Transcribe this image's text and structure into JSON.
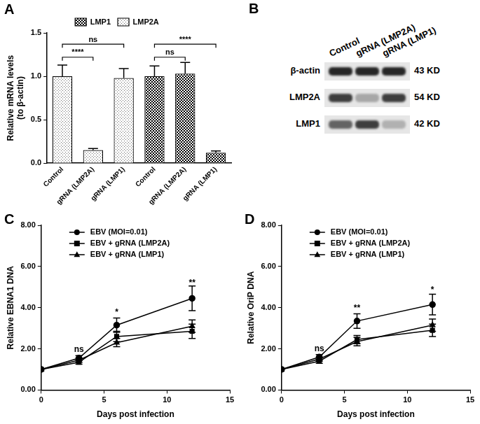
{
  "chart_data": [
    {
      "type": "bar",
      "title": "A",
      "y_label": [
        "Relative mRNA levels",
        "(to β-actin)"
      ],
      "categories": [
        "Control",
        "gRNA (LMP2A)",
        "gRNA (LMP1)",
        "Control",
        "gRNA (LMP2A)",
        "gRNA (LMP1)"
      ],
      "series": [
        {
          "name": "LMP1",
          "color": "#000000",
          "values": [
            null,
            null,
            null,
            1.0,
            1.03,
            0.12
          ],
          "errors": [
            null,
            null,
            null,
            0.12,
            0.13,
            0.02
          ]
        },
        {
          "name": "LMP2A",
          "color": "#000000",
          "values": [
            1.0,
            0.15,
            0.98,
            null,
            null,
            null
          ],
          "errors": [
            0.13,
            0.02,
            0.11,
            null,
            null,
            null
          ]
        }
      ],
      "ylim": [
        0,
        1.5
      ],
      "yticks": [
        {
          "value": 0,
          "label": "0.0"
        },
        {
          "value": 0.5,
          "label": "0.5"
        },
        {
          "value": 1,
          "label": "1.0"
        },
        {
          "value": 1.5,
          "label": "1.5"
        }
      ],
      "grid": false,
      "legend": "top",
      "annotations": [
        {
          "text": "****",
          "from": 0,
          "to": 1,
          "y": 1.22
        },
        {
          "text": "ns",
          "from": 0,
          "to": 2,
          "y": 1.37
        },
        {
          "text": "ns",
          "from": 3,
          "to": 4,
          "y": 1.22
        },
        {
          "text": "****",
          "from": 3,
          "to": 5,
          "y": 1.37
        }
      ]
    },
    {
      "type": "line",
      "title": "C",
      "x_label": "Days post infection",
      "y_label": "Relative EBNA1 DNA",
      "x": [
        0,
        3,
        6,
        12
      ],
      "series": [
        {
          "name": "EBV (MOI=0.01)",
          "color": "#000000",
          "marker": "circle",
          "values": [
            1.0,
            1.55,
            3.15,
            4.45
          ],
          "errors": [
            null,
            0.12,
            0.35,
            0.6
          ]
        },
        {
          "name": "EBV + gRNA (LMP2A)",
          "color": "#000000",
          "marker": "square",
          "values": [
            1.0,
            1.35,
            2.6,
            2.85
          ],
          "errors": [
            null,
            0.1,
            0.25,
            0.35
          ]
        },
        {
          "name": "EBV + gRNA (LMP1)",
          "color": "#000000",
          "marker": "triangle",
          "values": [
            1.0,
            1.45,
            2.3,
            3.1
          ],
          "errors": [
            null,
            0.1,
            0.2,
            0.3
          ]
        }
      ],
      "xlim": [
        0,
        15
      ],
      "xticks": [
        0,
        5,
        10,
        15
      ],
      "ylim": [
        0,
        8
      ],
      "yticks": [
        {
          "value": 0,
          "label": "0.00"
        },
        {
          "value": 2,
          "label": "2.00"
        },
        {
          "value": 4,
          "label": "4.00"
        },
        {
          "value": 6,
          "label": "6.00"
        },
        {
          "value": 8,
          "label": "8.00"
        }
      ],
      "grid": false,
      "legend": "upper left",
      "annotations": [
        {
          "text": "ns",
          "x": 3,
          "y": 1.95
        },
        {
          "text": "*",
          "x": 6,
          "y": 3.75
        },
        {
          "text": "**",
          "x": 12,
          "y": 5.2
        }
      ]
    },
    {
      "type": "line",
      "title": "D",
      "x_label": "Days post infection",
      "y_label": "Relative OriP DNA",
      "x": [
        0,
        3,
        6,
        12
      ],
      "series": [
        {
          "name": "EBV (MOI=0.01)",
          "color": "#000000",
          "marker": "circle",
          "values": [
            1.0,
            1.6,
            3.35,
            4.15
          ],
          "errors": [
            null,
            0.12,
            0.35,
            0.5
          ]
        },
        {
          "name": "EBV + gRNA (LMP2A)",
          "color": "#000000",
          "marker": "square",
          "values": [
            1.0,
            1.4,
            2.45,
            2.9
          ],
          "errors": [
            null,
            0.1,
            0.2,
            0.3
          ]
        },
        {
          "name": "EBV + gRNA (LMP1)",
          "color": "#000000",
          "marker": "triangle",
          "values": [
            1.0,
            1.5,
            2.35,
            3.15
          ],
          "errors": [
            null,
            0.1,
            0.2,
            0.3
          ]
        }
      ],
      "xlim": [
        0,
        15
      ],
      "xticks": [
        0,
        5,
        10,
        15
      ],
      "ylim": [
        0,
        8
      ],
      "yticks": [
        {
          "value": 0,
          "label": "0.00"
        },
        {
          "value": 2,
          "label": "2.00"
        },
        {
          "value": 4,
          "label": "4.00"
        },
        {
          "value": 6,
          "label": "6.00"
        },
        {
          "value": 8,
          "label": "8.00"
        }
      ],
      "grid": false,
      "legend": "upper left",
      "annotations": [
        {
          "text": "ns",
          "x": 3,
          "y": 2.0
        },
        {
          "text": "**",
          "x": 6,
          "y": 3.95
        },
        {
          "text": "*",
          "x": 12,
          "y": 4.85
        }
      ]
    }
  ],
  "blot": {
    "title": "B",
    "lanes": [
      "Control",
      "gRNA (LMP2A)",
      "gRNA (LMP1)"
    ],
    "rows": [
      {
        "label": "β-actin",
        "size": "43 KD",
        "intensity": [
          1.0,
          1.0,
          1.0
        ]
      },
      {
        "label": "LMP2A",
        "size": "54 KD",
        "intensity": [
          0.9,
          0.35,
          0.9
        ]
      },
      {
        "label": "LMP1",
        "size": "42 KD",
        "intensity": [
          0.7,
          0.9,
          0.3
        ]
      }
    ]
  }
}
